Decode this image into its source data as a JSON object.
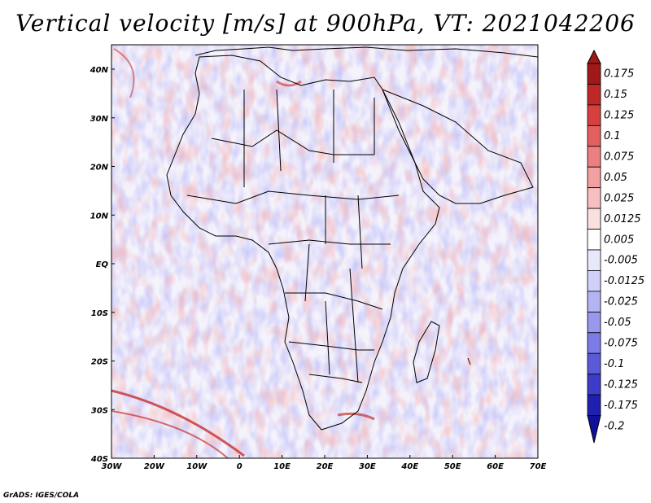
{
  "title": "Vertical velocity [m/s] at 900hPa, VT: 2021042206",
  "footer": "GrADS: IGES/COLA",
  "map": {
    "lon_labels": [
      "30W",
      "20W",
      "10W",
      "0",
      "10E",
      "20E",
      "30E",
      "40E",
      "50E",
      "60E",
      "70E"
    ],
    "lat_labels": [
      "40N",
      "30N",
      "20N",
      "10N",
      "EQ",
      "10S",
      "20S",
      "30S",
      "40S"
    ]
  },
  "colorbar": {
    "levels": [
      "0.175",
      "0.15",
      "0.125",
      "0.1",
      "0.075",
      "0.05",
      "0.025",
      "0.0125",
      "0.005",
      "-0.005",
      "-0.0125",
      "-0.025",
      "-0.05",
      "-0.075",
      "-0.1",
      "-0.125",
      "-0.175",
      "-0.2"
    ],
    "colors": [
      "#a01818",
      "#c02828",
      "#d84040",
      "#e46060",
      "#ec8080",
      "#f2a0a0",
      "#f7c0c0",
      "#fbe0e0",
      "#ffffff",
      "#e8e8fc",
      "#d0d0f8",
      "#b4b4f2",
      "#9898ec",
      "#7c7ce6",
      "#5a5ad8",
      "#3c3cc8",
      "#2020b0",
      "#10109a"
    ]
  }
}
